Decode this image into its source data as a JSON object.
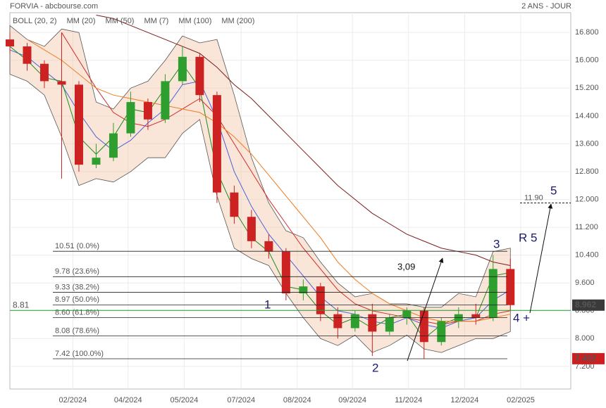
{
  "chart_data": {
    "type": "candlestick",
    "title": "FORVIA - abcbourse.com",
    "period": "2 ANS - JOUR",
    "x": [
      0,
      2,
      4,
      6,
      8,
      10,
      12,
      14,
      16,
      18,
      20,
      22,
      24,
      26,
      28,
      30,
      32,
      34,
      36,
      38,
      40,
      42,
      44,
      46,
      48,
      50,
      52,
      54,
      56,
      58
    ],
    "open": [
      16.6,
      16.4,
      15.9,
      15.4,
      15.3,
      13.0,
      13.2,
      13.9,
      14.8,
      14.3,
      15.4,
      16.1,
      15.0,
      12.2,
      11.5,
      10.8,
      10.5,
      9.3,
      9.5,
      8.7,
      8.3,
      8.7,
      8.2,
      8.6,
      8.8,
      7.9,
      8.5,
      8.7,
      8.6,
      10.0
    ],
    "high": [
      16.8,
      16.5,
      16.0,
      16.8,
      15.4,
      13.6,
      14.2,
      15.1,
      14.9,
      15.6,
      16.4,
      16.2,
      15.1,
      12.4,
      11.7,
      11.0,
      10.6,
      9.7,
      9.6,
      8.9,
      8.8,
      9.0,
      8.7,
      8.9,
      8.9,
      8.6,
      8.9,
      9.0,
      10.4,
      10.3
    ],
    "low": [
      16.2,
      15.7,
      15.2,
      12.6,
      12.8,
      12.9,
      13.1,
      13.8,
      14.0,
      14.2,
      15.3,
      14.8,
      11.9,
      11.3,
      10.6,
      10.3,
      9.1,
      9.1,
      8.5,
      8.0,
      8.2,
      7.5,
      8.1,
      8.4,
      7.42,
      7.8,
      8.3,
      8.4,
      8.5,
      8.8
    ],
    "close": [
      16.4,
      15.9,
      15.4,
      15.3,
      13.0,
      13.2,
      13.9,
      14.8,
      14.3,
      15.4,
      16.1,
      15.0,
      12.2,
      11.5,
      10.8,
      10.5,
      9.3,
      9.5,
      8.7,
      8.3,
      8.7,
      8.2,
      8.6,
      8.8,
      7.9,
      8.5,
      8.7,
      8.6,
      10.0,
      8.962
    ],
    "up_color": "#2e9e2e",
    "down_color": "#cc2222",
    "bollinger": {
      "name": "BOLL (20, 2)",
      "color": "#f3c8a8",
      "upper": [
        17.0,
        16.6,
        16.4,
        16.9,
        16.8,
        14.8,
        14.6,
        15.2,
        15.4,
        16.0,
        16.7,
        16.5,
        16.6,
        15.0,
        13.2,
        11.9,
        11.1,
        10.9,
        10.2,
        9.6,
        9.2,
        9.3,
        9.0,
        9.0,
        8.9,
        8.9,
        9.3,
        9.2,
        10.5,
        10.6
      ],
      "lower": [
        15.6,
        15.4,
        15.0,
        13.8,
        12.4,
        12.6,
        12.5,
        12.8,
        13.2,
        13.2,
        13.9,
        14.3,
        12.1,
        10.6,
        10.3,
        10.1,
        9.3,
        8.6,
        8.0,
        7.8,
        8.1,
        7.6,
        7.8,
        8.1,
        7.7,
        7.6,
        7.8,
        8.0,
        8.0,
        8.2
      ]
    },
    "series": [
      {
        "name": "MM (20)",
        "color": "#4a62d8",
        "values": [
          16.3,
          16.1,
          15.7,
          15.3,
          14.5,
          13.8,
          13.4,
          13.7,
          14.2,
          14.6,
          15.3,
          15.4,
          14.3,
          12.8,
          11.8,
          11.0,
          10.4,
          9.8,
          9.2,
          8.8,
          8.7,
          8.5,
          8.4,
          8.6,
          8.4,
          8.3,
          8.5,
          8.6,
          9.1,
          9.4
        ]
      },
      {
        "name": "MM (50)",
        "color": "#d42a2a",
        "values": [
          null,
          null,
          null,
          16.8,
          16.0,
          15.2,
          14.5,
          14.2,
          14.1,
          14.3,
          14.6,
          14.9,
          14.4,
          13.6,
          12.8,
          12.0,
          11.3,
          10.6,
          10.0,
          9.4,
          9.0,
          8.8,
          8.7,
          8.6,
          8.5,
          8.4,
          8.5,
          8.5,
          8.7,
          8.8
        ]
      },
      {
        "name": "MM (7)",
        "color": "#1e8a1e",
        "values": [
          16.4,
          16.0,
          15.5,
          15.4,
          13.8,
          13.3,
          13.8,
          14.6,
          14.5,
          15.2,
          15.9,
          15.2,
          12.8,
          11.7,
          10.9,
          10.5,
          9.5,
          9.4,
          8.8,
          8.4,
          8.6,
          8.3,
          8.6,
          8.7,
          8.0,
          8.4,
          8.6,
          8.6,
          9.8,
          9.9
        ]
      },
      {
        "name": "MM (100)",
        "color": "#f07b20",
        "values": [
          null,
          16.6,
          16.3,
          16.0,
          15.6,
          15.2,
          15.0,
          14.9,
          14.8,
          14.7,
          14.6,
          14.5,
          14.2,
          13.8,
          13.3,
          12.7,
          12.1,
          11.5,
          10.9,
          10.2,
          9.7,
          9.3,
          9.0,
          8.8,
          8.6,
          8.5,
          8.5,
          8.5,
          8.6,
          8.7
        ]
      },
      {
        "name": "MM (200)",
        "color": "#7a1c1c",
        "values": [
          null,
          null,
          null,
          null,
          null,
          17.3,
          17.2,
          17.0,
          16.8,
          16.6,
          16.4,
          16.2,
          15.8,
          15.3,
          14.9,
          14.4,
          13.9,
          13.4,
          12.9,
          12.4,
          12.0,
          11.6,
          11.3,
          11.0,
          10.8,
          10.6,
          10.5,
          10.4,
          10.2,
          10.1
        ]
      }
    ],
    "fibonacci": [
      {
        "value": 10.51,
        "label": "10.51  (0.0%)"
      },
      {
        "value": 9.78,
        "label": "9.78  (23.6%)"
      },
      {
        "value": 9.33,
        "label": "9.33  (38.2%)"
      },
      {
        "value": 8.97,
        "label": "8.97  (50.0%)"
      },
      {
        "value": 8.6,
        "label": "8.60  (61.8%)"
      },
      {
        "value": 8.08,
        "label": "8.08  (78.6%)"
      },
      {
        "value": 7.42,
        "label": "7.42  (100.0%)"
      }
    ],
    "reference_line": {
      "value": 8.81,
      "label": "8.81",
      "color": "#2a9a2a"
    },
    "target_line": {
      "value": 11.9,
      "label": "11.90"
    },
    "last_price": 8.962,
    "low_price": 7.422,
    "annotations": [
      "1",
      "2",
      "3",
      "4 +",
      "5",
      "R 5",
      "3,09"
    ],
    "xlim": [
      0,
      65
    ],
    "xticks": [
      {
        "value": 7.3,
        "label": "02/2024"
      },
      {
        "value": 13.7,
        "label": "04/2024"
      },
      {
        "value": 20.2,
        "label": "05/2024"
      },
      {
        "value": 26.8,
        "label": "07/2024"
      },
      {
        "value": 33.3,
        "label": "08/2024"
      },
      {
        "value": 39.7,
        "label": "09/2024"
      },
      {
        "value": 46.2,
        "label": "11/2024"
      },
      {
        "value": 52.7,
        "label": "12/2024"
      },
      {
        "value": 59.2,
        "label": "02/2025"
      }
    ],
    "ylim": [
      6.55,
      17.37
    ],
    "yticks": [
      {
        "value": 7.2,
        "label": "7.200"
      },
      {
        "value": 8.0,
        "label": "8.000"
      },
      {
        "value": 8.8,
        "label": "8.800"
      },
      {
        "value": 9.6,
        "label": "9.600"
      },
      {
        "value": 10.4,
        "label": "10.400"
      },
      {
        "value": 11.2,
        "label": "11.200"
      },
      {
        "value": 12.0,
        "label": "12.000"
      },
      {
        "value": 12.8,
        "label": "12.800"
      },
      {
        "value": 13.6,
        "label": "13.600"
      },
      {
        "value": 14.4,
        "label": "14.400"
      },
      {
        "value": 15.2,
        "label": "15.200"
      },
      {
        "value": 16.0,
        "label": "16.000"
      },
      {
        "value": 16.8,
        "label": "16.800"
      }
    ],
    "grid": true
  }
}
